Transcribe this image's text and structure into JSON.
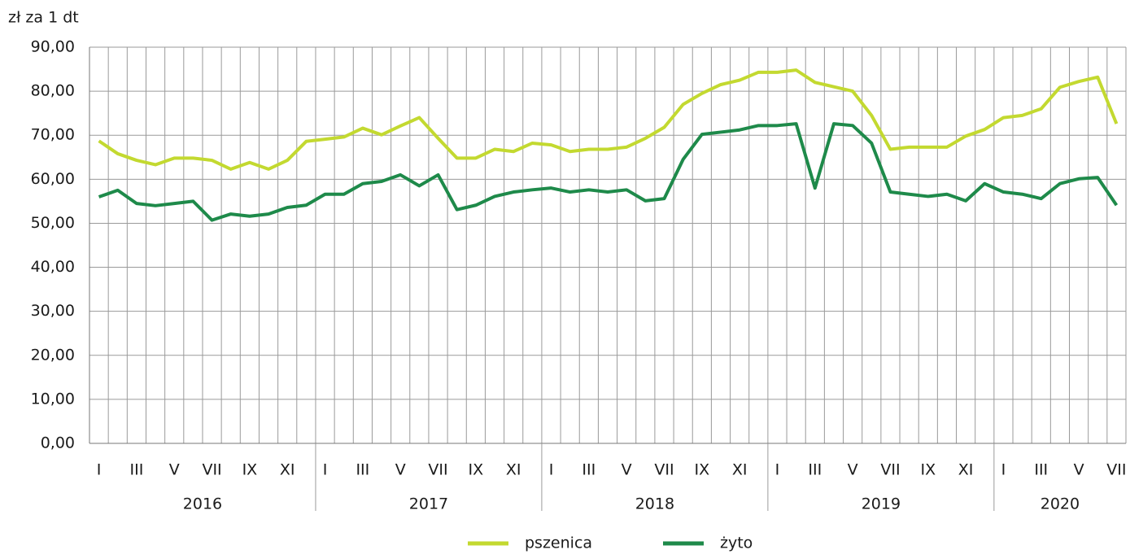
{
  "chart_data": {
    "type": "line",
    "y_axis_label": "zł za 1 dt",
    "categories": [
      "I",
      null,
      "III",
      null,
      "V",
      null,
      "VII",
      null,
      "IX",
      null,
      "XI",
      null,
      "I",
      null,
      "III",
      null,
      "V",
      null,
      "VII",
      null,
      "IX",
      null,
      "XI",
      null,
      "I",
      null,
      "III",
      null,
      "V",
      null,
      "VII",
      null,
      "IX",
      null,
      "XI",
      null,
      "I",
      null,
      "III",
      null,
      "V",
      null,
      "VII",
      null,
      "IX",
      null,
      "XI",
      null,
      "I",
      null,
      "III",
      null,
      "V",
      null,
      "VII"
    ],
    "groups": [
      "2016",
      "2017",
      "2018",
      "2019",
      "2020"
    ],
    "series": [
      {
        "name": "pszenica",
        "color": "#c3d930",
        "values": [
          68.7,
          65.8,
          64.3,
          63.3,
          64.8,
          64.8,
          64.3,
          62.3,
          63.8,
          62.3,
          64.3,
          68.6,
          69.1,
          69.6,
          71.6,
          70.1,
          72.1,
          74.0,
          69.3,
          64.8,
          64.8,
          66.8,
          66.3,
          68.2,
          67.8,
          66.3,
          66.8,
          66.8,
          67.3,
          69.3,
          71.8,
          77.0,
          79.5,
          81.5,
          82.5,
          84.3,
          84.3,
          84.8,
          82.0,
          81.0,
          80.0,
          74.5,
          66.8,
          67.3,
          67.3,
          67.3,
          69.8,
          71.3,
          74.0,
          74.5,
          76.0,
          80.9,
          82.2,
          83.2,
          72.6
        ]
      },
      {
        "name": "żyto",
        "color": "#1e8a4a",
        "values": [
          56.0,
          57.5,
          54.5,
          54.0,
          54.5,
          55.0,
          50.7,
          52.1,
          51.6,
          52.1,
          53.6,
          54.1,
          56.6,
          56.6,
          59.0,
          59.5,
          61.0,
          58.5,
          61.0,
          53.1,
          54.1,
          56.1,
          57.1,
          57.6,
          58.0,
          57.1,
          57.6,
          57.1,
          57.6,
          55.1,
          55.6,
          64.5,
          70.2,
          70.7,
          71.2,
          72.2,
          72.2,
          72.6,
          58.0,
          72.6,
          72.2,
          68.2,
          57.1,
          56.6,
          56.1,
          56.6,
          55.1,
          59.0,
          57.1,
          56.6,
          55.6,
          59.0,
          60.1,
          60.4,
          54.1
        ]
      }
    ],
    "ylim": [
      0,
      90
    ],
    "yticks": [
      {
        "value": 0,
        "label": "0,00"
      },
      {
        "value": 10,
        "label": "10,00"
      },
      {
        "value": 20,
        "label": "20,00"
      },
      {
        "value": 30,
        "label": "30,00"
      },
      {
        "value": 40,
        "label": "40,00"
      },
      {
        "value": 50,
        "label": "50,00"
      },
      {
        "value": 60,
        "label": "60,00"
      },
      {
        "value": 70,
        "label": "70,00"
      },
      {
        "value": 80,
        "label": "80,00"
      },
      {
        "value": 90,
        "label": "90,00"
      }
    ],
    "grid": true,
    "legend": "bottom"
  }
}
